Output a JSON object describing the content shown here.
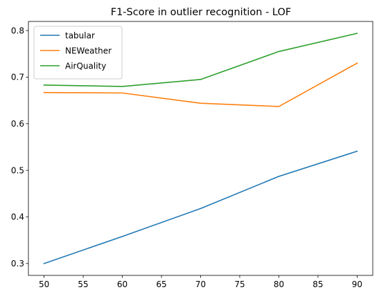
{
  "chart_data": {
    "type": "line",
    "title": "F1-Score in outlier recognition - LOF",
    "xlabel": "",
    "ylabel": "",
    "x": [
      50,
      60,
      70,
      80,
      90
    ],
    "xticks": [
      "50",
      "55",
      "60",
      "65",
      "70",
      "75",
      "80",
      "85",
      "90"
    ],
    "yticks": [
      "0.3",
      "0.4",
      "0.5",
      "0.6",
      "0.7",
      "0.8"
    ],
    "xlim": [
      48,
      92
    ],
    "ylim": [
      0.2745,
      0.8195
    ],
    "grid": false,
    "legend_position": "upper-left",
    "series": [
      {
        "name": "tabular",
        "color": "#1f77b4",
        "values": [
          0.3,
          0.358,
          0.418,
          0.487,
          0.541
        ]
      },
      {
        "name": "NEWeather",
        "color": "#ff7f0e",
        "values": [
          0.667,
          0.666,
          0.644,
          0.637,
          0.73
        ]
      },
      {
        "name": "AirQuality",
        "color": "#2ca02c",
        "values": [
          0.683,
          0.68,
          0.695,
          0.755,
          0.794
        ]
      }
    ]
  }
}
